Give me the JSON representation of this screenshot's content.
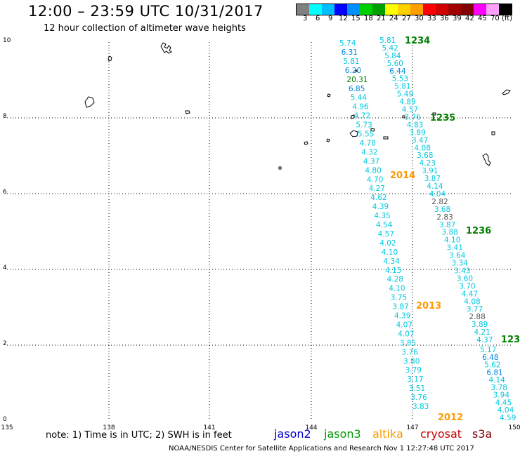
{
  "title": "12:00 – 23:59 UTC 10/31/2017",
  "subtitle": "12 hour collection of altimeter wave heights",
  "colorbar": {
    "colors": [
      "#808080",
      "#00ffff",
      "#00bfff",
      "#0000ff",
      "#0090ff",
      "#00d000",
      "#00a000",
      "#ffff00",
      "#ffd000",
      "#ffa000",
      "#ff0000",
      "#d00000",
      "#a00000",
      "#800000",
      "#ff00ff",
      "#ffa0ff",
      "#000000"
    ],
    "labels": [
      "3",
      "6",
      "9",
      "12",
      "15",
      "18",
      "21",
      "24",
      "27",
      "30",
      "33",
      "36",
      "39",
      "42",
      "45",
      "70",
      "(ft)"
    ]
  },
  "axes": {
    "x_ticks": [
      "135",
      "138",
      "141",
      "144",
      "147",
      "150"
    ],
    "y_ticks": [
      "0",
      "2",
      "4",
      "6",
      "8",
      "10"
    ]
  },
  "tracks": [
    {
      "label": "1234",
      "color": "#008000",
      "values": [
        "5.81",
        "5.42",
        "5.84",
        "5.60",
        "6.44",
        "5.53",
        "5.81",
        "5.49",
        "4.89",
        "4.57",
        "3.76",
        "4.83",
        "3.89",
        "3.47",
        "4.08",
        "3.68",
        "4.23",
        "3.91",
        "3.87",
        "4.14",
        "4.04",
        "2.82",
        "3.68",
        "2.83",
        "3.87",
        "3.88",
        "4.10",
        "3.41",
        "3.64",
        "3.34",
        "3.43",
        "3.60",
        "3.70",
        "4.47",
        "4.08",
        "3.77",
        "2.88",
        "3.89",
        "4.21",
        "4.37"
      ]
    },
    {
      "label": "1235",
      "color": "#008000"
    },
    {
      "label": "1236",
      "color": "#008000"
    },
    {
      "label": "123",
      "color": "#008000",
      "values": [
        "5.17",
        "6.48",
        "5.62",
        "6.81",
        "4.14",
        "3.78",
        "3.94",
        "4.45",
        "4.04",
        "4.59"
      ]
    },
    {
      "label": "2014",
      "color": "#ff9900",
      "values": [
        "5.74",
        "6.31",
        "5.81",
        "6.20",
        "20.31",
        "6.85",
        "5.44",
        "4.96",
        "4.72",
        "5.73",
        "5.55",
        "4.78",
        "4.32",
        "4.37",
        "4.80",
        "4.70",
        "4.27",
        "4.62",
        "4.39",
        "4.35",
        "4.54",
        "4.57",
        "4.02",
        "4.10",
        "4.34",
        "4.15",
        "4.28",
        "4.10",
        "3.75",
        "3.87",
        "4.39",
        "4.07",
        "4.07",
        "3.85",
        "3.76",
        "3.80",
        "3.79",
        "3.17",
        "3.51",
        "3.76",
        "3.83"
      ]
    },
    {
      "label": "2013",
      "color": "#ff9900"
    },
    {
      "label": "2012",
      "color": "#ff9900"
    }
  ],
  "note": "note: 1) Time is in UTC; 2) SWH is in feet",
  "satellites": [
    {
      "name": "jason2",
      "color": "#0000cc"
    },
    {
      "name": "jason3",
      "color": "#009900"
    },
    {
      "name": "altika",
      "color": "#ff9900"
    },
    {
      "name": "cryosat",
      "color": "#cc0000"
    },
    {
      "name": "s3a",
      "color": "#800000"
    }
  ],
  "credit": "NOAA/NESDIS Center for Satellite Applications and Research     Nov  1 12:27:48 UTC 2017"
}
